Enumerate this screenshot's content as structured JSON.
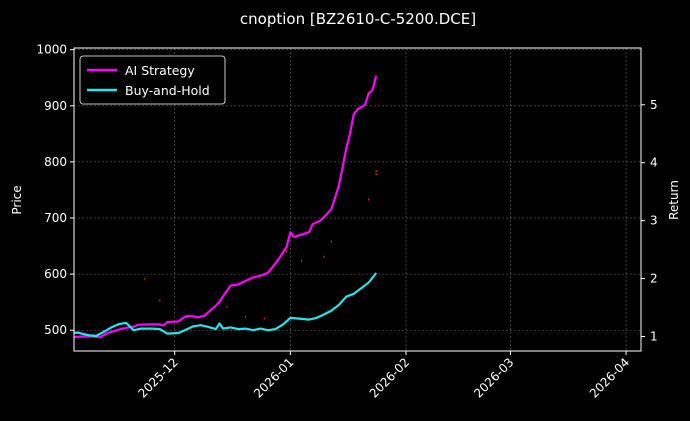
{
  "chart_data": {
    "type": "line",
    "title": "cnoption [BZ2610-C-5200.DCE]",
    "background_color": "#000000",
    "grid": true,
    "legend_position": "top-left",
    "x_axis": {
      "type": "date",
      "range": [
        "2025-11-04",
        "2026-04-05"
      ],
      "tick_labels": [
        "2025-12",
        "2026-01",
        "2026-02",
        "2026-03",
        "2026-04"
      ],
      "tick_values": [
        "2025-12-01",
        "2026-01-01",
        "2026-02-01",
        "2026-03-01",
        "2026-04-01"
      ]
    },
    "y_left": {
      "label": "Price",
      "range": [
        463,
        1003
      ],
      "ticks": [
        500,
        600,
        700,
        800,
        900,
        1000
      ]
    },
    "y_right": {
      "label": "Return",
      "range": [
        0.75,
        5.98
      ],
      "ticks": [
        1,
        2,
        3,
        4,
        5
      ]
    },
    "series": [
      {
        "name": "AI Strategy",
        "axis": "right",
        "color": "#ff00ff",
        "points": [
          [
            "2025-11-04",
            0.99
          ],
          [
            "2025-11-06",
            1.0
          ],
          [
            "2025-11-09",
            1.0
          ],
          [
            "2025-11-11",
            0.99
          ],
          [
            "2025-11-13",
            1.06
          ],
          [
            "2025-11-16",
            1.12
          ],
          [
            "2025-11-18",
            1.15
          ],
          [
            "2025-11-20",
            1.17
          ],
          [
            "2025-11-21",
            1.2
          ],
          [
            "2025-11-24",
            1.21
          ],
          [
            "2025-11-27",
            1.21
          ],
          [
            "2025-11-28",
            1.19
          ],
          [
            "2025-11-29",
            1.25
          ],
          [
            "2025-12-02",
            1.26
          ],
          [
            "2025-12-03",
            1.31
          ],
          [
            "2025-12-04",
            1.35
          ],
          [
            "2025-12-06",
            1.35
          ],
          [
            "2025-12-07",
            1.33
          ],
          [
            "2025-12-09",
            1.36
          ],
          [
            "2025-12-10",
            1.42
          ],
          [
            "2025-12-12",
            1.53
          ],
          [
            "2025-12-13",
            1.6
          ],
          [
            "2025-12-14",
            1.7
          ],
          [
            "2025-12-16",
            1.88
          ],
          [
            "2025-12-18",
            1.9
          ],
          [
            "2025-12-20",
            1.96
          ],
          [
            "2025-12-22",
            2.02
          ],
          [
            "2025-12-24",
            2.05
          ],
          [
            "2025-12-26",
            2.1
          ],
          [
            "2025-12-27",
            2.18
          ],
          [
            "2025-12-29",
            2.35
          ],
          [
            "2025-12-31",
            2.55
          ],
          [
            "2026-01-01",
            2.8
          ],
          [
            "2026-01-02",
            2.72
          ],
          [
            "2026-01-06",
            2.8
          ],
          [
            "2026-01-07",
            2.94
          ],
          [
            "2026-01-09",
            3.0
          ],
          [
            "2026-01-10",
            3.06
          ],
          [
            "2026-01-12",
            3.2
          ],
          [
            "2026-01-13",
            3.4
          ],
          [
            "2026-01-14",
            3.6
          ],
          [
            "2026-01-15",
            3.92
          ],
          [
            "2026-01-16",
            4.25
          ],
          [
            "2026-01-17",
            4.5
          ],
          [
            "2026-01-18",
            4.84
          ],
          [
            "2026-01-19",
            4.92
          ],
          [
            "2026-01-20",
            4.96
          ],
          [
            "2026-01-21",
            5.0
          ],
          [
            "2026-01-22",
            5.2
          ],
          [
            "2026-01-23",
            5.25
          ],
          [
            "2026-01-24",
            5.5
          ]
        ]
      },
      {
        "name": "Buy-and-Hold",
        "axis": "left",
        "color": "#20e8ee",
        "points": [
          [
            "2025-11-04",
            495
          ],
          [
            "2025-11-05",
            496
          ],
          [
            "2025-11-06",
            494
          ],
          [
            "2025-11-08",
            491
          ],
          [
            "2025-11-10",
            490
          ],
          [
            "2025-11-12",
            497
          ],
          [
            "2025-11-14",
            505
          ],
          [
            "2025-11-16",
            511
          ],
          [
            "2025-11-18",
            513
          ],
          [
            "2025-11-20",
            500
          ],
          [
            "2025-11-22",
            503
          ],
          [
            "2025-11-25",
            503
          ],
          [
            "2025-11-27",
            502
          ],
          [
            "2025-11-29",
            494
          ],
          [
            "2025-12-02",
            495
          ],
          [
            "2025-12-04",
            501
          ],
          [
            "2025-12-06",
            507
          ],
          [
            "2025-12-08",
            509
          ],
          [
            "2025-12-10",
            506
          ],
          [
            "2025-12-12",
            502
          ],
          [
            "2025-12-13",
            512
          ],
          [
            "2025-12-14",
            503
          ],
          [
            "2025-12-16",
            505
          ],
          [
            "2025-12-18",
            502
          ],
          [
            "2025-12-20",
            503
          ],
          [
            "2025-12-22",
            500
          ],
          [
            "2025-12-24",
            503
          ],
          [
            "2025-12-26",
            500
          ],
          [
            "2025-12-28",
            502
          ],
          [
            "2025-12-30",
            510
          ],
          [
            "2026-01-01",
            522
          ],
          [
            "2026-01-03",
            521
          ],
          [
            "2026-01-06",
            519
          ],
          [
            "2026-01-08",
            522
          ],
          [
            "2026-01-10",
            528
          ],
          [
            "2026-01-12",
            535
          ],
          [
            "2026-01-14",
            545
          ],
          [
            "2026-01-16",
            560
          ],
          [
            "2026-01-18",
            565
          ],
          [
            "2026-01-20",
            575
          ],
          [
            "2026-01-22",
            585
          ],
          [
            "2026-01-24",
            602
          ]
        ]
      },
      {
        "name": "",
        "axis": "left",
        "style": "scatter",
        "color": "#ff1a1a",
        "points": [
          [
            "2025-11-23",
            592
          ],
          [
            "2025-11-27",
            553
          ],
          [
            "2025-12-15",
            542
          ],
          [
            "2025-12-20",
            524
          ],
          [
            "2025-12-25",
            521
          ],
          [
            "2025-12-31",
            641
          ],
          [
            "2026-01-04",
            623
          ],
          [
            "2026-01-10",
            631
          ],
          [
            "2026-01-12",
            658
          ],
          [
            "2026-01-22",
            733
          ],
          [
            "2026-01-24",
            778
          ],
          [
            "2026-01-24",
            784
          ]
        ]
      }
    ]
  }
}
